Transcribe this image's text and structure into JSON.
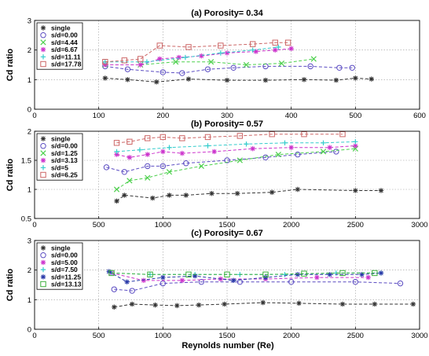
{
  "figure": {
    "xlabel": "Reynolds number (Re)"
  },
  "chart_data": [
    {
      "type": "line",
      "title": "(a) Porosity= 0.34",
      "ylabel": "Cd ratio",
      "xlim": [
        0,
        600
      ],
      "ylim": [
        0,
        3
      ],
      "xticks": [
        "0",
        "100",
        "200",
        "300",
        "400",
        "500",
        "600"
      ],
      "yticks": [
        "0",
        "1",
        "2",
        "3"
      ],
      "grid": true,
      "legend_position": "top-left",
      "series": [
        {
          "name": "single",
          "color": "#333333",
          "marker": "star",
          "x": [
            110,
            145,
            190,
            240,
            300,
            360,
            420,
            470,
            500,
            525
          ],
          "y": [
            1.05,
            1.0,
            0.92,
            1.02,
            0.98,
            0.98,
            1.0,
            0.98,
            1.05,
            1.02
          ]
        },
        {
          "name": "s/d=0.00",
          "color": "#5b4cc2",
          "marker": "circle",
          "x": [
            110,
            145,
            200,
            230,
            270,
            310,
            360,
            430,
            475,
            495
          ],
          "y": [
            1.45,
            1.35,
            1.25,
            1.22,
            1.35,
            1.4,
            1.45,
            1.45,
            1.4,
            1.4
          ]
        },
        {
          "name": "s/d=4.44",
          "color": "#4cd04c",
          "marker": "x",
          "x": [
            110,
            165,
            220,
            275,
            330,
            385,
            435
          ],
          "y": [
            1.5,
            1.5,
            1.6,
            1.6,
            1.5,
            1.55,
            1.7
          ]
        },
        {
          "name": "s/d=6.67",
          "color": "#cc33cc",
          "marker": "star",
          "x": [
            110,
            165,
            195,
            225,
            260,
            300,
            345,
            375,
            400
          ],
          "y": [
            1.5,
            1.5,
            1.7,
            1.75,
            1.8,
            1.9,
            1.95,
            2.0,
            2.05
          ]
        },
        {
          "name": "s/d=11.11",
          "color": "#33cccc",
          "marker": "plus",
          "x": [
            110,
            175,
            235,
            290,
            340,
            380
          ],
          "y": [
            1.6,
            1.6,
            1.75,
            1.9,
            2.0,
            2.1
          ]
        },
        {
          "name": "s/d=17.78",
          "color": "#cc6666",
          "marker": "square",
          "x": [
            110,
            140,
            165,
            195,
            240,
            290,
            340,
            375,
            395
          ],
          "y": [
            1.6,
            1.65,
            1.7,
            2.15,
            2.1,
            2.15,
            2.2,
            2.25,
            2.25
          ]
        }
      ]
    },
    {
      "type": "line",
      "title": "(b) Porosity= 0.57",
      "ylabel": "Cd ratio",
      "xlim": [
        0,
        3000
      ],
      "ylim": [
        0.5,
        2
      ],
      "xticks": [
        "0",
        "500",
        "1000",
        "1500",
        "2000",
        "2500",
        "3000"
      ],
      "yticks": [
        "0.5",
        "1",
        "1.5",
        "2"
      ],
      "grid": true,
      "legend_position": "top-left",
      "series": [
        {
          "name": "single",
          "color": "#333333",
          "marker": "star",
          "x": [
            640,
            700,
            920,
            1050,
            1180,
            1380,
            1580,
            1850,
            2050,
            2500,
            2700
          ],
          "y": [
            0.8,
            0.9,
            0.85,
            0.9,
            0.9,
            0.93,
            0.93,
            0.95,
            1.0,
            0.98,
            0.98
          ]
        },
        {
          "name": "s/d=0.00",
          "color": "#5b4cc2",
          "marker": "circle",
          "x": [
            560,
            700,
            880,
            1000,
            1180,
            1500,
            1800,
            2050,
            2350
          ],
          "y": [
            1.38,
            1.3,
            1.4,
            1.4,
            1.45,
            1.5,
            1.55,
            1.6,
            1.65
          ]
        },
        {
          "name": "s/d=1.25",
          "color": "#4cd04c",
          "marker": "x",
          "x": [
            640,
            740,
            880,
            1050,
            1300,
            1600,
            1900,
            2250,
            2500
          ],
          "y": [
            1.0,
            1.15,
            1.2,
            1.3,
            1.4,
            1.5,
            1.6,
            1.65,
            1.7
          ]
        },
        {
          "name": "s/d=3.13",
          "color": "#cc33cc",
          "marker": "star",
          "x": [
            640,
            740,
            880,
            1000,
            1150,
            1400,
            1700,
            2000,
            2300,
            2500
          ],
          "y": [
            1.6,
            1.55,
            1.6,
            1.65,
            1.62,
            1.65,
            1.7,
            1.72,
            1.72,
            1.75
          ]
        },
        {
          "name": "s/d=5",
          "color": "#33cccc",
          "marker": "plus",
          "x": [
            640,
            820,
            1050,
            1350,
            1650,
            1950,
            2250,
            2500
          ],
          "y": [
            1.65,
            1.68,
            1.72,
            1.75,
            1.78,
            1.8,
            1.8,
            1.82
          ]
        },
        {
          "name": "s/d=6.25",
          "color": "#cc6666",
          "marker": "square",
          "x": [
            640,
            740,
            880,
            1000,
            1150,
            1350,
            1600,
            1850,
            2100,
            2400
          ],
          "y": [
            1.8,
            1.82,
            1.88,
            1.9,
            1.88,
            1.9,
            1.92,
            1.95,
            1.95,
            1.95
          ]
        }
      ]
    },
    {
      "type": "line",
      "title": "(c) Porosity= 0.67",
      "ylabel": "Cd ratio",
      "xlim": [
        0,
        3000
      ],
      "ylim": [
        0,
        3
      ],
      "xticks": [
        "0",
        "500",
        "1000",
        "1500",
        "2000",
        "2500",
        "3000"
      ],
      "yticks": [
        "0",
        "1",
        "2",
        "3"
      ],
      "grid": true,
      "legend_position": "top-left",
      "series": [
        {
          "name": "single",
          "color": "#333333",
          "marker": "star",
          "x": [
            620,
            760,
            940,
            1110,
            1280,
            1480,
            1780,
            2060,
            2400,
            2650,
            2950
          ],
          "y": [
            0.75,
            0.85,
            0.82,
            0.8,
            0.82,
            0.85,
            0.9,
            0.88,
            0.85,
            0.85,
            0.85
          ]
        },
        {
          "name": "s/d=0.00",
          "color": "#5b4cc2",
          "marker": "circle",
          "x": [
            620,
            760,
            1000,
            1300,
            1600,
            2000,
            2500,
            2850
          ],
          "y": [
            1.35,
            1.3,
            1.55,
            1.6,
            1.6,
            1.6,
            1.6,
            1.55
          ]
        },
        {
          "name": "s/d=5.00",
          "color": "#cc33cc",
          "marker": "star",
          "x": [
            600,
            850,
            1150,
            1450,
            1800,
            2200,
            2600
          ],
          "y": [
            1.9,
            1.65,
            1.65,
            1.7,
            1.7,
            1.75,
            1.75
          ]
        },
        {
          "name": "s/d=7.50",
          "color": "#33cccc",
          "marker": "plus",
          "x": [
            600,
            900,
            1250,
            1600,
            1950,
            2350,
            2700
          ],
          "y": [
            1.9,
            1.85,
            1.85,
            1.85,
            1.85,
            1.9,
            1.9
          ]
        },
        {
          "name": "s/d=11.25",
          "color": "#2a3aa8",
          "marker": "star",
          "x": [
            580,
            720,
            1000,
            1250,
            1550,
            1800,
            2050,
            2300,
            2550,
            2700
          ],
          "y": [
            1.95,
            1.6,
            1.75,
            1.8,
            1.65,
            1.75,
            1.85,
            1.85,
            1.85,
            1.9
          ]
        },
        {
          "name": "s/d=13.13",
          "color": "#3cb03c",
          "marker": "square",
          "x": [
            600,
            900,
            1200,
            1500,
            1800,
            2100,
            2400,
            2650
          ],
          "y": [
            1.9,
            1.85,
            1.85,
            1.85,
            1.85,
            1.88,
            1.9,
            1.9
          ]
        }
      ]
    }
  ]
}
